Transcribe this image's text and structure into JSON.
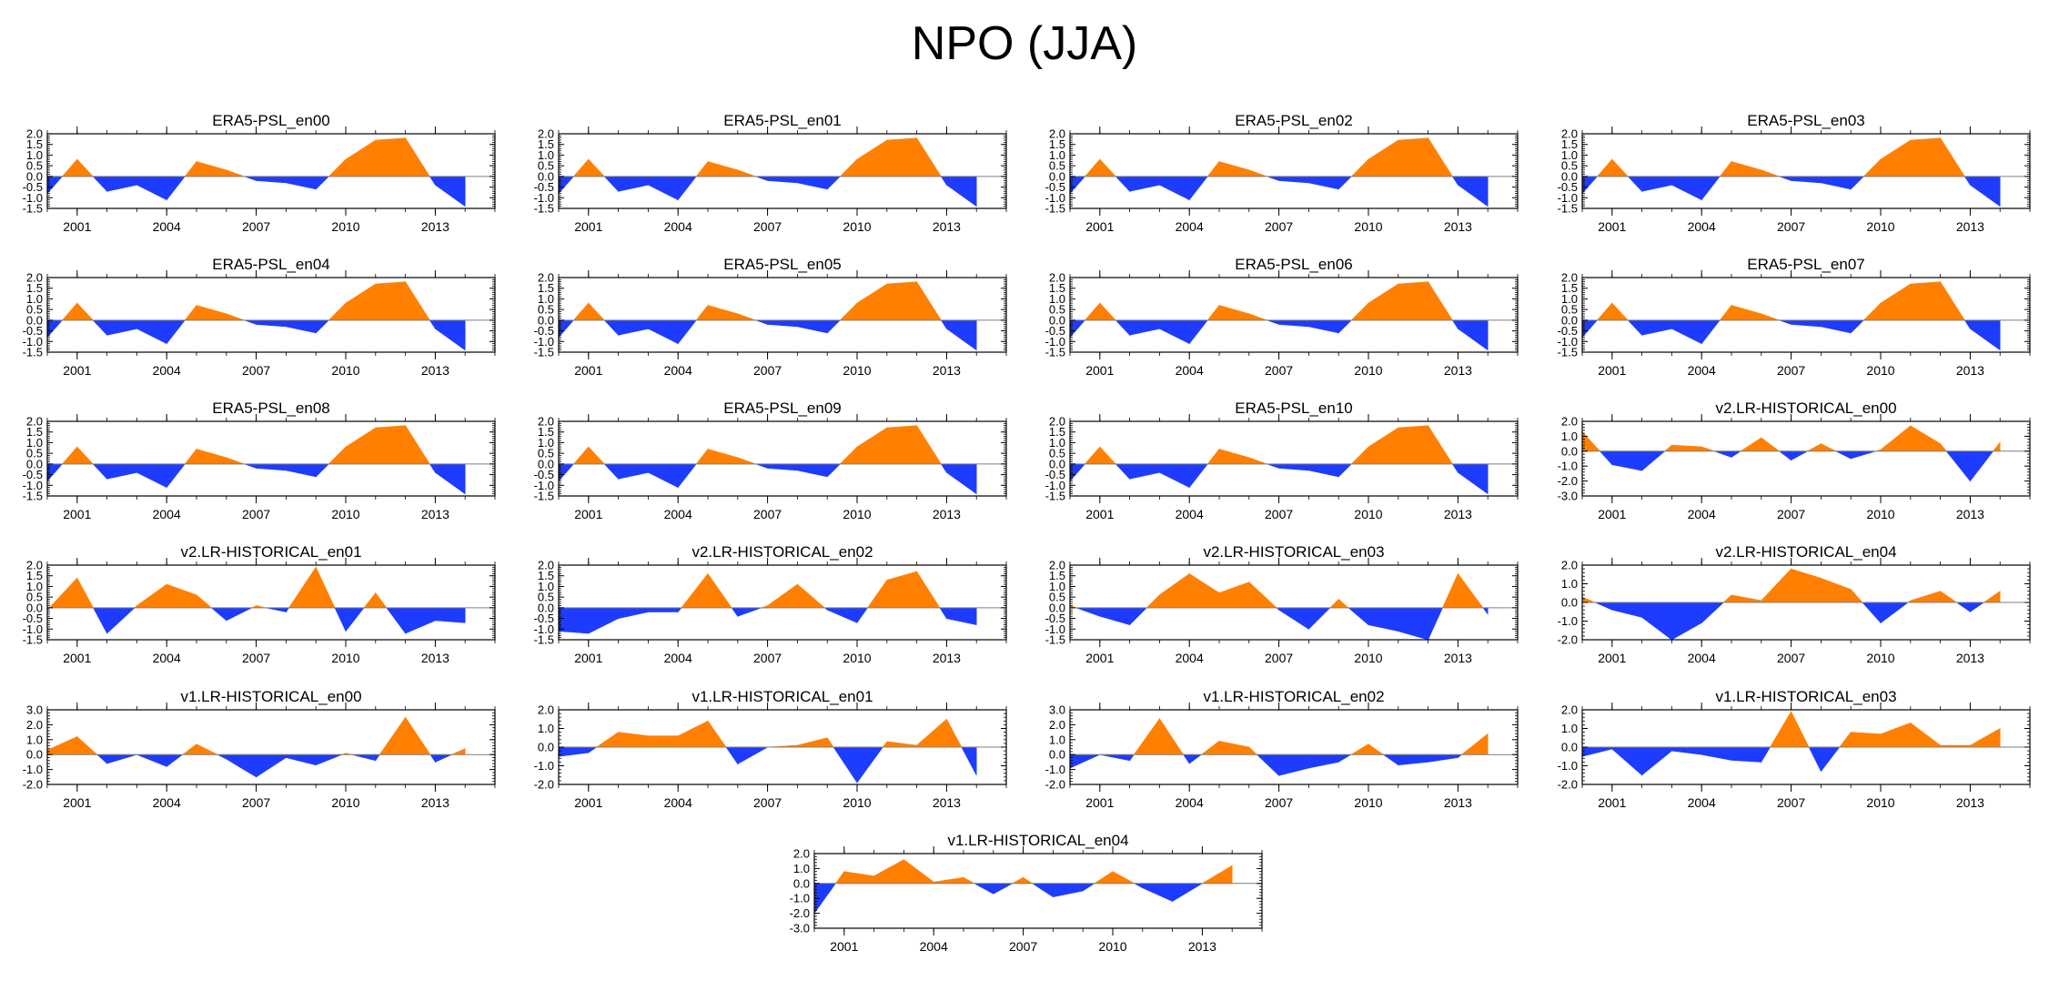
{
  "figure": {
    "title": "NPO (JJA)",
    "colors": {
      "positive": "#ff8000",
      "negative": "#1e3cff",
      "axis": "#000000",
      "zero_line": "#7f7f7f"
    },
    "x_ticks": [
      2001,
      2004,
      2007,
      2010,
      2013
    ],
    "x_range": [
      2000,
      2015
    ]
  },
  "chart_data": [
    {
      "type": "area",
      "title": "ERA5-PSL_en00",
      "x": [
        2000,
        2001,
        2002,
        2003,
        2004,
        2005,
        2006,
        2007,
        2008,
        2009,
        2010,
        2011,
        2012,
        2013,
        2014
      ],
      "values": [
        -0.8,
        0.8,
        -0.7,
        -0.4,
        -1.1,
        0.7,
        0.3,
        -0.2,
        -0.3,
        -0.6,
        0.8,
        1.7,
        1.8,
        -0.4,
        -1.4
      ],
      "ylim": [
        -1.5,
        2.0
      ],
      "yticks": [
        2.0,
        1.5,
        1.0,
        0.5,
        0.0,
        -0.5,
        -1.0,
        -1.5
      ]
    },
    {
      "type": "area",
      "title": "ERA5-PSL_en01",
      "x": [
        2000,
        2001,
        2002,
        2003,
        2004,
        2005,
        2006,
        2007,
        2008,
        2009,
        2010,
        2011,
        2012,
        2013,
        2014
      ],
      "values": [
        -0.8,
        0.8,
        -0.7,
        -0.4,
        -1.1,
        0.7,
        0.3,
        -0.2,
        -0.3,
        -0.6,
        0.8,
        1.7,
        1.8,
        -0.4,
        -1.4
      ],
      "ylim": [
        -1.5,
        2.0
      ],
      "yticks": [
        2.0,
        1.5,
        1.0,
        0.5,
        0.0,
        -0.5,
        -1.0,
        -1.5
      ]
    },
    {
      "type": "area",
      "title": "ERA5-PSL_en02",
      "x": [
        2000,
        2001,
        2002,
        2003,
        2004,
        2005,
        2006,
        2007,
        2008,
        2009,
        2010,
        2011,
        2012,
        2013,
        2014
      ],
      "values": [
        -0.8,
        0.8,
        -0.7,
        -0.4,
        -1.1,
        0.7,
        0.3,
        -0.2,
        -0.3,
        -0.6,
        0.8,
        1.7,
        1.8,
        -0.4,
        -1.4
      ],
      "ylim": [
        -1.5,
        2.0
      ],
      "yticks": [
        2.0,
        1.5,
        1.0,
        0.5,
        0.0,
        -0.5,
        -1.0,
        -1.5
      ]
    },
    {
      "type": "area",
      "title": "ERA5-PSL_en03",
      "x": [
        2000,
        2001,
        2002,
        2003,
        2004,
        2005,
        2006,
        2007,
        2008,
        2009,
        2010,
        2011,
        2012,
        2013,
        2014
      ],
      "values": [
        -0.8,
        0.8,
        -0.7,
        -0.4,
        -1.1,
        0.7,
        0.3,
        -0.2,
        -0.3,
        -0.6,
        0.8,
        1.7,
        1.8,
        -0.4,
        -1.4
      ],
      "ylim": [
        -1.5,
        2.0
      ],
      "yticks": [
        2.0,
        1.5,
        1.0,
        0.5,
        0.0,
        -0.5,
        -1.0,
        -1.5
      ]
    },
    {
      "type": "area",
      "title": "ERA5-PSL_en04",
      "x": [
        2000,
        2001,
        2002,
        2003,
        2004,
        2005,
        2006,
        2007,
        2008,
        2009,
        2010,
        2011,
        2012,
        2013,
        2014
      ],
      "values": [
        -0.8,
        0.8,
        -0.7,
        -0.4,
        -1.1,
        0.7,
        0.3,
        -0.2,
        -0.3,
        -0.6,
        0.8,
        1.7,
        1.8,
        -0.4,
        -1.4
      ],
      "ylim": [
        -1.5,
        2.0
      ],
      "yticks": [
        2.0,
        1.5,
        1.0,
        0.5,
        0.0,
        -0.5,
        -1.0,
        -1.5
      ]
    },
    {
      "type": "area",
      "title": "ERA5-PSL_en05",
      "x": [
        2000,
        2001,
        2002,
        2003,
        2004,
        2005,
        2006,
        2007,
        2008,
        2009,
        2010,
        2011,
        2012,
        2013,
        2014
      ],
      "values": [
        -0.8,
        0.8,
        -0.7,
        -0.4,
        -1.1,
        0.7,
        0.3,
        -0.2,
        -0.3,
        -0.6,
        0.8,
        1.7,
        1.8,
        -0.4,
        -1.4
      ],
      "ylim": [
        -1.5,
        2.0
      ],
      "yticks": [
        2.0,
        1.5,
        1.0,
        0.5,
        0.0,
        -0.5,
        -1.0,
        -1.5
      ]
    },
    {
      "type": "area",
      "title": "ERA5-PSL_en06",
      "x": [
        2000,
        2001,
        2002,
        2003,
        2004,
        2005,
        2006,
        2007,
        2008,
        2009,
        2010,
        2011,
        2012,
        2013,
        2014
      ],
      "values": [
        -0.8,
        0.8,
        -0.7,
        -0.4,
        -1.1,
        0.7,
        0.3,
        -0.2,
        -0.3,
        -0.6,
        0.8,
        1.7,
        1.8,
        -0.4,
        -1.4
      ],
      "ylim": [
        -1.5,
        2.0
      ],
      "yticks": [
        2.0,
        1.5,
        1.0,
        0.5,
        0.0,
        -0.5,
        -1.0,
        -1.5
      ]
    },
    {
      "type": "area",
      "title": "ERA5-PSL_en07",
      "x": [
        2000,
        2001,
        2002,
        2003,
        2004,
        2005,
        2006,
        2007,
        2008,
        2009,
        2010,
        2011,
        2012,
        2013,
        2014
      ],
      "values": [
        -0.8,
        0.8,
        -0.7,
        -0.4,
        -1.1,
        0.7,
        0.3,
        -0.2,
        -0.3,
        -0.6,
        0.8,
        1.7,
        1.8,
        -0.4,
        -1.4
      ],
      "ylim": [
        -1.5,
        2.0
      ],
      "yticks": [
        2.0,
        1.5,
        1.0,
        0.5,
        0.0,
        -0.5,
        -1.0,
        -1.5
      ]
    },
    {
      "type": "area",
      "title": "ERA5-PSL_en08",
      "x": [
        2000,
        2001,
        2002,
        2003,
        2004,
        2005,
        2006,
        2007,
        2008,
        2009,
        2010,
        2011,
        2012,
        2013,
        2014
      ],
      "values": [
        -0.8,
        0.8,
        -0.7,
        -0.4,
        -1.1,
        0.7,
        0.3,
        -0.2,
        -0.3,
        -0.6,
        0.8,
        1.7,
        1.8,
        -0.4,
        -1.4
      ],
      "ylim": [
        -1.5,
        2.0
      ],
      "yticks": [
        2.0,
        1.5,
        1.0,
        0.5,
        0.0,
        -0.5,
        -1.0,
        -1.5
      ]
    },
    {
      "type": "area",
      "title": "ERA5-PSL_en09",
      "x": [
        2000,
        2001,
        2002,
        2003,
        2004,
        2005,
        2006,
        2007,
        2008,
        2009,
        2010,
        2011,
        2012,
        2013,
        2014
      ],
      "values": [
        -0.8,
        0.8,
        -0.7,
        -0.4,
        -1.1,
        0.7,
        0.3,
        -0.2,
        -0.3,
        -0.6,
        0.8,
        1.7,
        1.8,
        -0.4,
        -1.4
      ],
      "ylim": [
        -1.5,
        2.0
      ],
      "yticks": [
        2.0,
        1.5,
        1.0,
        0.5,
        0.0,
        -0.5,
        -1.0,
        -1.5
      ]
    },
    {
      "type": "area",
      "title": "ERA5-PSL_en10",
      "x": [
        2000,
        2001,
        2002,
        2003,
        2004,
        2005,
        2006,
        2007,
        2008,
        2009,
        2010,
        2011,
        2012,
        2013,
        2014
      ],
      "values": [
        -0.8,
        0.8,
        -0.7,
        -0.4,
        -1.1,
        0.7,
        0.3,
        -0.2,
        -0.3,
        -0.6,
        0.8,
        1.7,
        1.8,
        -0.4,
        -1.4
      ],
      "ylim": [
        -1.5,
        2.0
      ],
      "yticks": [
        2.0,
        1.5,
        1.0,
        0.5,
        0.0,
        -0.5,
        -1.0,
        -1.5
      ]
    },
    {
      "type": "area",
      "title": "v2.LR-HISTORICAL_en00",
      "x": [
        2000,
        2001,
        2002,
        2003,
        2004,
        2005,
        2006,
        2007,
        2008,
        2009,
        2010,
        2011,
        2012,
        2013,
        2014
      ],
      "values": [
        1.3,
        -0.9,
        -1.3,
        0.4,
        0.3,
        -0.4,
        0.9,
        -0.6,
        0.5,
        -0.5,
        0.1,
        1.7,
        0.5,
        -2.0,
        0.6
      ],
      "ylim": [
        -3.0,
        2.0
      ],
      "yticks": [
        2.0,
        1.0,
        0.0,
        -1.0,
        -2.0,
        -3.0
      ]
    },
    {
      "type": "area",
      "title": "v2.LR-HISTORICAL_en01",
      "x": [
        2000,
        2001,
        2002,
        2003,
        2004,
        2005,
        2006,
        2007,
        2008,
        2009,
        2010,
        2011,
        2012,
        2013,
        2014
      ],
      "values": [
        -0.1,
        1.4,
        -1.2,
        0.1,
        1.1,
        0.6,
        -0.6,
        0.1,
        -0.2,
        1.9,
        -1.1,
        0.7,
        -1.2,
        -0.6,
        -0.7
      ],
      "ylim": [
        -1.5,
        2.0
      ],
      "yticks": [
        2.0,
        1.5,
        1.0,
        0.5,
        0.0,
        -0.5,
        -1.0,
        -1.5
      ]
    },
    {
      "type": "area",
      "title": "v2.LR-HISTORICAL_en02",
      "x": [
        2000,
        2001,
        2002,
        2003,
        2004,
        2005,
        2006,
        2007,
        2008,
        2009,
        2010,
        2011,
        2012,
        2013,
        2014
      ],
      "values": [
        -1.1,
        -1.2,
        -0.5,
        -0.2,
        -0.2,
        1.6,
        -0.4,
        0.1,
        1.1,
        -0.1,
        -0.7,
        1.3,
        1.7,
        -0.5,
        -0.8
      ],
      "ylim": [
        -1.5,
        2.0
      ],
      "yticks": [
        2.0,
        1.5,
        1.0,
        0.5,
        0.0,
        -0.5,
        -1.0,
        -1.5
      ]
    },
    {
      "type": "area",
      "title": "v2.LR-HISTORICAL_en03",
      "x": [
        2000,
        2001,
        2002,
        2003,
        2004,
        2005,
        2006,
        2007,
        2008,
        2009,
        2010,
        2011,
        2012,
        2013,
        2014
      ],
      "values": [
        0.1,
        -0.4,
        -0.8,
        0.6,
        1.6,
        0.7,
        1.2,
        -0.1,
        -1.0,
        0.4,
        -0.8,
        -1.1,
        -1.5,
        1.6,
        -0.3
      ],
      "ylim": [
        -1.5,
        2.0
      ],
      "yticks": [
        2.0,
        1.5,
        1.0,
        0.5,
        0.0,
        -0.5,
        -1.0,
        -1.5
      ]
    },
    {
      "type": "area",
      "title": "v2.LR-HISTORICAL_en04",
      "x": [
        2000,
        2001,
        2002,
        2003,
        2004,
        2005,
        2006,
        2007,
        2008,
        2009,
        2010,
        2011,
        2012,
        2013,
        2014
      ],
      "values": [
        0.3,
        -0.4,
        -0.8,
        -2.0,
        -1.1,
        0.4,
        0.1,
        1.8,
        1.3,
        0.7,
        -1.1,
        0.1,
        0.6,
        -0.5,
        0.6
      ],
      "ylim": [
        -2.0,
        2.0
      ],
      "yticks": [
        2.0,
        1.0,
        0.0,
        -1.0,
        -2.0
      ]
    },
    {
      "type": "area",
      "title": "v1.LR-HISTORICAL_en00",
      "x": [
        2000,
        2001,
        2002,
        2003,
        2004,
        2005,
        2006,
        2007,
        2008,
        2009,
        2010,
        2011,
        2012,
        2013,
        2014
      ],
      "values": [
        0.3,
        1.2,
        -0.6,
        0.0,
        -0.8,
        0.7,
        -0.3,
        -1.5,
        -0.2,
        -0.7,
        0.1,
        -0.4,
        2.5,
        -0.5,
        0.4
      ],
      "ylim": [
        -2.0,
        3.0
      ],
      "yticks": [
        3.0,
        2.0,
        1.0,
        0.0,
        -1.0,
        -2.0
      ]
    },
    {
      "type": "area",
      "title": "v1.LR-HISTORICAL_en01",
      "x": [
        2000,
        2001,
        2002,
        2003,
        2004,
        2005,
        2006,
        2007,
        2008,
        2009,
        2010,
        2011,
        2012,
        2013,
        2014
      ],
      "values": [
        -0.5,
        -0.3,
        0.8,
        0.6,
        0.6,
        1.4,
        -0.9,
        0.0,
        0.1,
        0.5,
        -1.9,
        0.3,
        0.1,
        1.5,
        -1.5
      ],
      "ylim": [
        -2.0,
        2.0
      ],
      "yticks": [
        2.0,
        1.0,
        0.0,
        -1.0,
        -2.0
      ]
    },
    {
      "type": "area",
      "title": "v1.LR-HISTORICAL_en02",
      "x": [
        2000,
        2001,
        2002,
        2003,
        2004,
        2005,
        2006,
        2007,
        2008,
        2009,
        2010,
        2011,
        2012,
        2013,
        2014
      ],
      "values": [
        -0.9,
        0.0,
        -0.4,
        2.4,
        -0.6,
        0.9,
        0.5,
        -1.4,
        -0.9,
        -0.5,
        0.7,
        -0.7,
        -0.5,
        -0.2,
        1.4
      ],
      "ylim": [
        -2.0,
        3.0
      ],
      "yticks": [
        3.0,
        2.0,
        1.0,
        0.0,
        -1.0,
        -2.0
      ]
    },
    {
      "type": "area",
      "title": "v1.LR-HISTORICAL_en03",
      "x": [
        2000,
        2001,
        2002,
        2003,
        2004,
        2005,
        2006,
        2007,
        2008,
        2009,
        2010,
        2011,
        2012,
        2013,
        2014
      ],
      "values": [
        -0.5,
        -0.1,
        -1.5,
        -0.2,
        -0.4,
        -0.7,
        -0.8,
        1.9,
        -1.3,
        0.8,
        0.7,
        1.3,
        0.1,
        0.1,
        1.0
      ],
      "ylim": [
        -2.0,
        2.0
      ],
      "yticks": [
        2.0,
        1.0,
        0.0,
        -1.0,
        -2.0
      ]
    },
    {
      "type": "area",
      "title": "v1.LR-HISTORICAL_en04",
      "x": [
        2000,
        2001,
        2002,
        2003,
        2004,
        2005,
        2006,
        2007,
        2008,
        2009,
        2010,
        2011,
        2012,
        2013,
        2014
      ],
      "values": [
        -2.0,
        0.8,
        0.5,
        1.6,
        0.1,
        0.4,
        -0.7,
        0.4,
        -0.9,
        -0.5,
        0.8,
        -0.3,
        -1.2,
        0.0,
        1.2
      ],
      "ylim": [
        -3.0,
        2.0
      ],
      "yticks": [
        2.0,
        1.0,
        0.0,
        -1.0,
        -2.0,
        -3.0
      ]
    }
  ]
}
